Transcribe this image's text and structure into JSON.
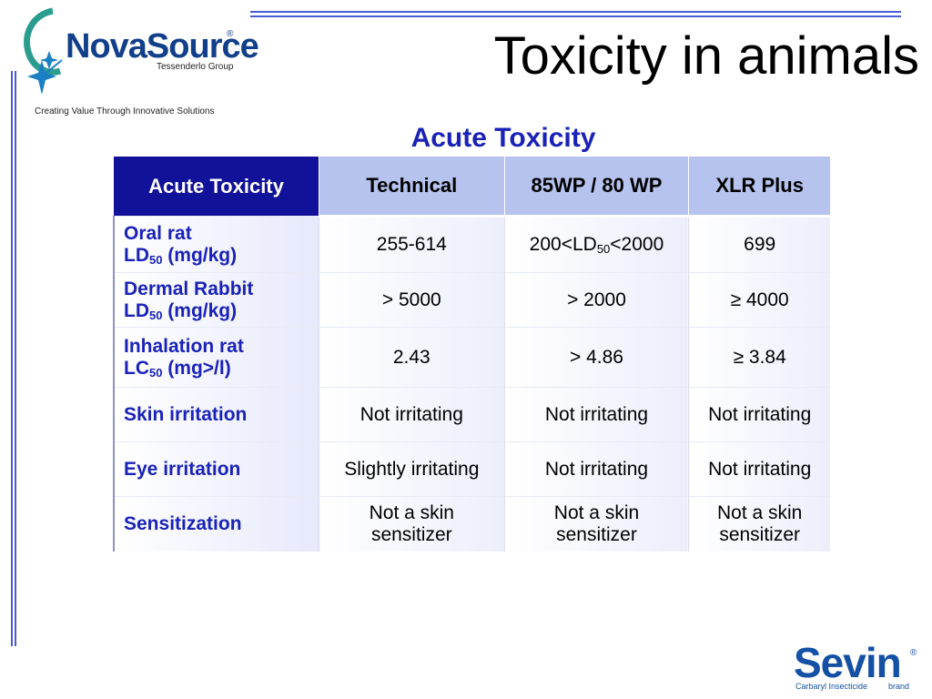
{
  "header": {
    "title": "Toxicity in animals",
    "logo_text": "NovaSource",
    "logo_group": "Tessenderlo Group",
    "tagline": "Creating Value Through Innovative Solutions"
  },
  "subtitle": "Acute Toxicity",
  "table": {
    "headers": [
      "Acute Toxicity",
      "Technical",
      "85WP / 80 WP",
      "XLR Plus"
    ],
    "rows": [
      {
        "label_line1": "Oral rat",
        "label_line2_prefix": "LD",
        "label_line2_sub": "50",
        "label_line2_suffix": " (mg/kg)",
        "c1": "255-614",
        "c2_pre": "200<LD",
        "c2_sub": "50",
        "c2_post": "<2000",
        "c3": "699"
      },
      {
        "label_line1": "Dermal Rabbit",
        "label_line2_prefix": "LD",
        "label_line2_sub": "50",
        "label_line2_suffix": " (mg/kg)",
        "c1": "> 5000",
        "c2": "> 2000",
        "c3": "≥ 4000"
      },
      {
        "label_line1": "Inhalation rat",
        "label_line2_prefix": "LC",
        "label_line2_sub": "50",
        "label_line2_suffix": " (mg>/l)",
        "c1": "2.43",
        "c2": "> 4.86",
        "c3": "≥ 3.84"
      },
      {
        "label": "Skin irritation",
        "c1": "Not irritating",
        "c2": "Not irritating",
        "c3": "Not irritating"
      },
      {
        "label": "Eye irritation",
        "c1": "Slightly irritating",
        "c2": "Not irritating",
        "c3": "Not irritating"
      },
      {
        "label": "Sensitization",
        "c1_l1": "Not a skin",
        "c1_l2": "sensitizer",
        "c2_l1": "Not a skin",
        "c2_l2": "sensitizer",
        "c3_l1": "Not a skin",
        "c3_l2": "sensitizer"
      }
    ]
  },
  "brand": {
    "name": "Sevin",
    "reg": "®",
    "subtitle": "Carbaryl Insecticide",
    "brand_word": "brand"
  },
  "colors": {
    "accent": "#1a22b8",
    "header_dark": "#11119a",
    "header_light": "#b5c3ee",
    "logo_blue": "#123f8a"
  }
}
